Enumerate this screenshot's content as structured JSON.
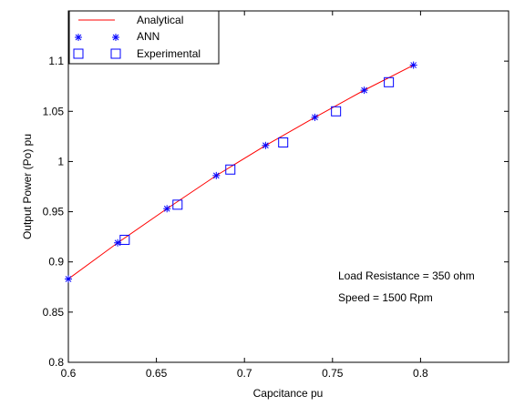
{
  "chart_data": {
    "type": "line",
    "xlabel": "Capcitance pu",
    "ylabel": "Output Power (Po) pu",
    "xlim": [
      0.6,
      0.85
    ],
    "ylim": [
      0.8,
      1.15
    ],
    "grid": false,
    "legend_position": "top-left",
    "x_ticks": [
      "0.6",
      "0.65",
      "0.7",
      "0.75",
      "0.8"
    ],
    "y_ticks": [
      "0.8",
      "0.85",
      "0.9",
      "0.95",
      "1",
      "1.05",
      "1.1"
    ],
    "annotations": [
      "Load Resistance = 350 ohm",
      "Speed = 1500 Rpm"
    ],
    "series": [
      {
        "name": "Analytical",
        "marker": "line",
        "color": "#ff0000",
        "x": [
          0.6,
          0.628,
          0.656,
          0.684,
          0.712,
          0.74,
          0.768,
          0.796
        ],
        "y": [
          0.883,
          0.919,
          0.953,
          0.986,
          1.016,
          1.044,
          1.071,
          1.096
        ]
      },
      {
        "name": "ANN",
        "marker": "star",
        "color": "#0000ff",
        "x": [
          0.6,
          0.628,
          0.656,
          0.684,
          0.712,
          0.74,
          0.768,
          0.796
        ],
        "y": [
          0.883,
          0.919,
          0.953,
          0.986,
          1.016,
          1.044,
          1.071,
          1.096
        ]
      },
      {
        "name": "Experimental",
        "marker": "square",
        "color": "#0000ff",
        "x": [
          0.632,
          0.662,
          0.692,
          0.722,
          0.752,
          0.782
        ],
        "y": [
          0.922,
          0.957,
          0.992,
          1.019,
          1.05,
          1.079
        ]
      }
    ]
  }
}
